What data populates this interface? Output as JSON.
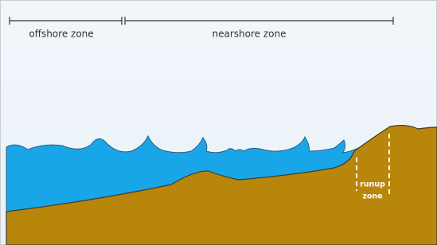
{
  "zones": [
    {
      "label": "offshore zone"
    },
    {
      "label": "nearshore zone"
    }
  ],
  "runup": {
    "lines": [
      "runup",
      "zone"
    ]
  }
}
